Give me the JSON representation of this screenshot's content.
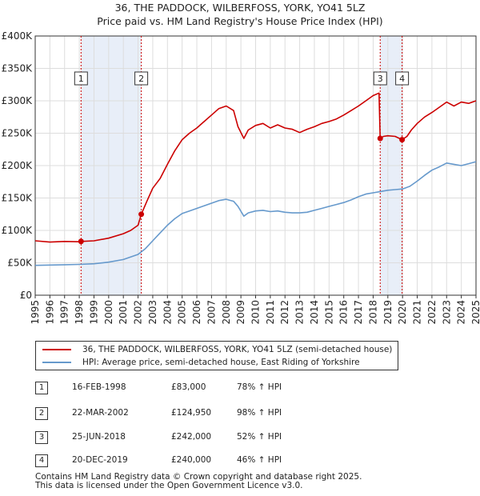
{
  "title_line1": "36, THE PADDOCK, WILBERFOSS, YORK, YO41 5LZ",
  "title_line2": "Price paid vs. HM Land Registry's House Price Index (HPI)",
  "colors": {
    "property": "#cc0000",
    "hpi": "#6699cc",
    "shade": "#e8eef8",
    "grid": "#dddddd"
  },
  "chart_data": {
    "type": "line",
    "title": "Price paid vs. HM Land Registry's House Price Index (HPI)",
    "xlim": [
      1995,
      2025
    ],
    "ylim": [
      0,
      400000
    ],
    "y_ticks": [
      0,
      50000,
      100000,
      150000,
      200000,
      250000,
      300000,
      350000,
      400000
    ],
    "y_tick_labels": [
      "£0",
      "£50K",
      "£100K",
      "£150K",
      "£200K",
      "£250K",
      "£300K",
      "£350K",
      "£400K"
    ],
    "x_ticks": [
      "1995",
      "1996",
      "1997",
      "1998",
      "1999",
      "2000",
      "2001",
      "2002",
      "2003",
      "2004",
      "2005",
      "2006",
      "2007",
      "2008",
      "2009",
      "2010",
      "2011",
      "2012",
      "2013",
      "2014",
      "2015",
      "2016",
      "2017",
      "2018",
      "2019",
      "2020",
      "2021",
      "2022",
      "2023",
      "2024",
      "2025"
    ],
    "shaded_ranges": [
      [
        1998.12,
        2002.22
      ],
      [
        2018.48,
        2019.97
      ]
    ],
    "series": [
      {
        "name": "36, THE PADDOCK, WILBERFOSS, YORK, YO41 5LZ (semi-detached house)",
        "color": "#cc0000",
        "x": [
          1995.0,
          1996.0,
          1997.0,
          1998.0,
          1998.12,
          1999.0,
          2000.0,
          2001.0,
          2001.5,
          2002.0,
          2002.22,
          2002.6,
          2003.0,
          2003.5,
          2004.0,
          2004.5,
          2005.0,
          2005.5,
          2006.0,
          2006.5,
          2007.0,
          2007.5,
          2008.0,
          2008.5,
          2008.8,
          2009.2,
          2009.5,
          2010.0,
          2010.5,
          2011.0,
          2011.5,
          2012.0,
          2012.5,
          2013.0,
          2013.5,
          2014.0,
          2014.5,
          2015.0,
          2015.5,
          2016.0,
          2016.5,
          2017.0,
          2017.5,
          2018.0,
          2018.4,
          2018.48,
          2018.7,
          2019.0,
          2019.5,
          2019.97,
          2020.3,
          2020.6,
          2021.0,
          2021.5,
          2022.0,
          2022.5,
          2023.0,
          2023.5,
          2024.0,
          2024.5,
          2025.0
        ],
        "y": [
          84000,
          82000,
          83000,
          82500,
          83000,
          84000,
          88000,
          95000,
          100000,
          108000,
          124950,
          145000,
          165000,
          180000,
          202000,
          223000,
          240000,
          250000,
          258000,
          268000,
          278000,
          288000,
          292000,
          285000,
          260000,
          242000,
          255000,
          262000,
          265000,
          258000,
          263000,
          258000,
          256000,
          251000,
          256000,
          260000,
          265000,
          268000,
          272000,
          278000,
          285000,
          292000,
          300000,
          308000,
          312000,
          242000,
          245000,
          246000,
          245000,
          240000,
          245000,
          255000,
          265000,
          275000,
          282000,
          290000,
          298000,
          292000,
          298000,
          296000,
          300000
        ]
      },
      {
        "name": "HPI: Average price, semi-detached house, East Riding of Yorkshire",
        "color": "#6699cc",
        "x": [
          1995.0,
          1996.0,
          1997.0,
          1998.0,
          1999.0,
          2000.0,
          2001.0,
          2002.0,
          2002.5,
          2003.0,
          2003.5,
          2004.0,
          2004.5,
          2005.0,
          2005.5,
          2006.0,
          2006.5,
          2007.0,
          2007.5,
          2008.0,
          2008.5,
          2008.8,
          2009.2,
          2009.5,
          2010.0,
          2010.5,
          2011.0,
          2011.5,
          2012.0,
          2012.5,
          2013.0,
          2013.5,
          2014.0,
          2014.5,
          2015.0,
          2015.5,
          2016.0,
          2016.5,
          2017.0,
          2017.5,
          2018.0,
          2018.5,
          2019.0,
          2019.5,
          2020.0,
          2020.5,
          2021.0,
          2021.5,
          2022.0,
          2022.5,
          2023.0,
          2023.5,
          2024.0,
          2024.5,
          2025.0
        ],
        "y": [
          46000,
          46500,
          47000,
          47500,
          48500,
          51000,
          55000,
          63000,
          72000,
          84000,
          96000,
          108000,
          118000,
          126000,
          130000,
          134000,
          138000,
          142000,
          146000,
          148000,
          145000,
          137000,
          122000,
          127000,
          130000,
          131000,
          129000,
          130000,
          128000,
          127000,
          127000,
          128000,
          131000,
          134000,
          137000,
          140000,
          143000,
          147000,
          152000,
          156000,
          158000,
          160000,
          162000,
          163000,
          164000,
          168000,
          176000,
          185000,
          193000,
          198000,
          204000,
          202000,
          200000,
          203000,
          206000
        ]
      }
    ],
    "sales": [
      {
        "label": "1",
        "x": 1998.12,
        "price": 83000
      },
      {
        "label": "2",
        "x": 2002.22,
        "price": 124950
      },
      {
        "label": "3",
        "x": 2018.48,
        "price": 242000
      },
      {
        "label": "4",
        "x": 2019.97,
        "price": 240000
      }
    ]
  },
  "legend": {
    "property": "36, THE PADDOCK, WILBERFOSS, YORK, YO41 5LZ (semi-detached house)",
    "hpi": "HPI: Average price, semi-detached house, East Riding of Yorkshire"
  },
  "sales_table": [
    {
      "num": "1",
      "date": "16-FEB-1998",
      "price": "£83,000",
      "hpi": "78% ↑ HPI"
    },
    {
      "num": "2",
      "date": "22-MAR-2002",
      "price": "£124,950",
      "hpi": "98% ↑ HPI"
    },
    {
      "num": "3",
      "date": "25-JUN-2018",
      "price": "£242,000",
      "hpi": "52% ↑ HPI"
    },
    {
      "num": "4",
      "date": "20-DEC-2019",
      "price": "£240,000",
      "hpi": "46% ↑ HPI"
    }
  ],
  "footer_line1": "Contains HM Land Registry data © Crown copyright and database right 2025.",
  "footer_line2": "This data is licensed under the Open Government Licence v3.0."
}
